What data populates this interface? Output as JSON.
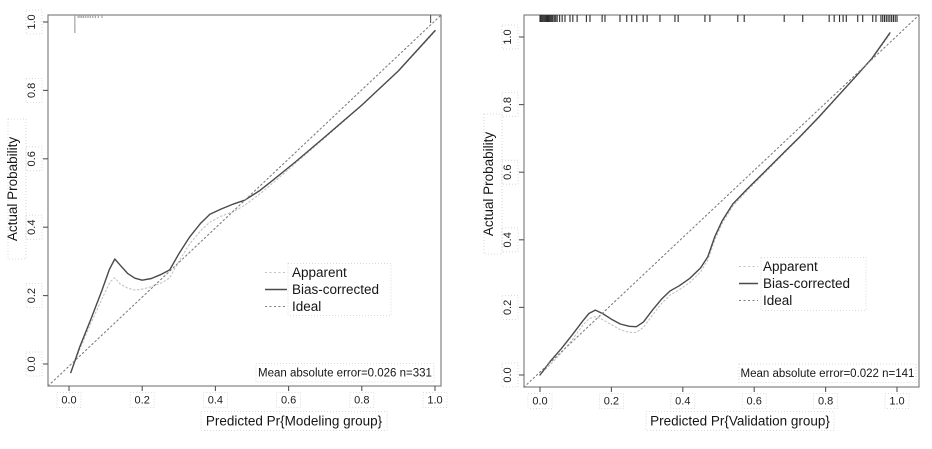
{
  "figure": {
    "description": "Two side-by-side calibration plots (modeling and validation groups)",
    "background": "#ffffff"
  },
  "colors": {
    "box_stroke": "#777777",
    "tick_stroke": "#555555",
    "tick_label": "#2a2a2a",
    "text": "#161616",
    "label_box": "#cfcfcf",
    "rug_default": "#2b2b2b"
  },
  "chart_data": [
    {
      "type": "line",
      "title": "",
      "xlabel": "Predicted Pr{Modeling group}",
      "ylabel": "Actual Probability",
      "xlim": [
        -0.057,
        1.016
      ],
      "ylim": [
        -0.064,
        1.02
      ],
      "xtick_labels": [
        "0.0",
        "0.2",
        "0.4",
        "0.6",
        "0.8",
        "1.0"
      ],
      "ytick_labels": [
        "0.0",
        "0.2",
        "0.4",
        "0.6",
        "0.8",
        "1.0"
      ],
      "grid": false,
      "legend_position": "right-center",
      "annotation": "Mean absolute error=0.026 n=331",
      "series": [
        {
          "name": "Apparent",
          "style": "dotted",
          "color": "#c2c2c2",
          "points": [
            [
              0.005,
              -0.025
            ],
            [
              0.03,
              0.045
            ],
            [
              0.06,
              0.12
            ],
            [
              0.09,
              0.19
            ],
            [
              0.112,
              0.24
            ],
            [
              0.125,
              0.252
            ],
            [
              0.14,
              0.234
            ],
            [
              0.16,
              0.222
            ],
            [
              0.18,
              0.216
            ],
            [
              0.205,
              0.22
            ],
            [
              0.23,
              0.228
            ],
            [
              0.255,
              0.238
            ],
            [
              0.275,
              0.252
            ],
            [
              0.3,
              0.3
            ],
            [
              0.33,
              0.352
            ],
            [
              0.36,
              0.39
            ],
            [
              0.385,
              0.415
            ],
            [
              0.415,
              0.432
            ],
            [
              0.45,
              0.446
            ],
            [
              0.48,
              0.464
            ],
            [
              0.52,
              0.496
            ],
            [
              0.56,
              0.532
            ],
            [
              0.62,
              0.588
            ],
            [
              0.7,
              0.662
            ],
            [
              0.8,
              0.756
            ],
            [
              0.9,
              0.856
            ],
            [
              1.0,
              0.972
            ]
          ]
        },
        {
          "name": "Bias-corrected",
          "style": "solid",
          "color": "#4a4a4a",
          "points": [
            [
              0.005,
              -0.025
            ],
            [
              0.03,
              0.052
            ],
            [
              0.06,
              0.132
            ],
            [
              0.09,
              0.215
            ],
            [
              0.11,
              0.276
            ],
            [
              0.125,
              0.307
            ],
            [
              0.14,
              0.289
            ],
            [
              0.16,
              0.265
            ],
            [
              0.18,
              0.251
            ],
            [
              0.2,
              0.245
            ],
            [
              0.225,
              0.25
            ],
            [
              0.25,
              0.261
            ],
            [
              0.275,
              0.275
            ],
            [
              0.3,
              0.322
            ],
            [
              0.33,
              0.372
            ],
            [
              0.36,
              0.412
            ],
            [
              0.385,
              0.438
            ],
            [
              0.415,
              0.453
            ],
            [
              0.45,
              0.468
            ],
            [
              0.48,
              0.479
            ],
            [
              0.52,
              0.506
            ],
            [
              0.56,
              0.54
            ],
            [
              0.62,
              0.592
            ],
            [
              0.7,
              0.665
            ],
            [
              0.8,
              0.757
            ],
            [
              0.9,
              0.857
            ],
            [
              1.0,
              0.975
            ]
          ]
        },
        {
          "name": "Ideal",
          "style": "dashed",
          "color": "#7d7d7d",
          "points": [
            [
              -0.057,
              -0.064
            ],
            [
              1.016,
              1.02
            ]
          ]
        }
      ],
      "rug_ticks": [
        [
          0.016,
          18,
          "#9a9a9a"
        ],
        [
          0.025,
          3,
          "#9a9a9a"
        ],
        [
          0.03,
          3,
          "#9a9a9a"
        ],
        [
          0.035,
          3,
          "#9a9a9a"
        ],
        [
          0.04,
          3,
          "#9a9a9a"
        ],
        [
          0.046,
          3,
          "#9a9a9a"
        ],
        [
          0.052,
          3,
          "#9a9a9a"
        ],
        [
          0.058,
          3,
          "#9a9a9a"
        ],
        [
          0.065,
          3,
          "#9a9a9a"
        ],
        [
          0.072,
          3,
          "#9a9a9a"
        ],
        [
          0.08,
          3,
          "#9a9a9a"
        ],
        [
          0.09,
          3,
          "#9a9a9a"
        ],
        [
          0.988,
          8,
          "#555555"
        ]
      ]
    },
    {
      "type": "line",
      "title": "",
      "xlabel": "Predicted Pr{Validation group}",
      "ylabel": "Actual Probability",
      "xlim": [
        -0.045,
        1.062
      ],
      "ylim": [
        -0.036,
        1.065
      ],
      "xtick_labels": [
        "0.0",
        "0.2",
        "0.4",
        "0.6",
        "0.8",
        "1.0"
      ],
      "ytick_labels": [
        "0.0",
        "0.2",
        "0.4",
        "0.6",
        "0.8",
        "1.0"
      ],
      "grid": false,
      "legend_position": "right-center",
      "annotation": "Mean absolute error=0.022 n=141",
      "series": [
        {
          "name": "Apparent",
          "style": "dotted",
          "color": "#c2c2c2",
          "points": [
            [
              0.0,
              0.0
            ],
            [
              0.03,
              0.032
            ],
            [
              0.06,
              0.066
            ],
            [
              0.09,
              0.104
            ],
            [
              0.12,
              0.147
            ],
            [
              0.137,
              0.166
            ],
            [
              0.155,
              0.173
            ],
            [
              0.175,
              0.164
            ],
            [
              0.2,
              0.149
            ],
            [
              0.225,
              0.134
            ],
            [
              0.25,
              0.126
            ],
            [
              0.27,
              0.126
            ],
            [
              0.29,
              0.141
            ],
            [
              0.315,
              0.177
            ],
            [
              0.34,
              0.211
            ],
            [
              0.365,
              0.237
            ],
            [
              0.39,
              0.252
            ],
            [
              0.42,
              0.274
            ],
            [
              0.45,
              0.305
            ],
            [
              0.47,
              0.34
            ],
            [
              0.49,
              0.4
            ],
            [
              0.51,
              0.448
            ],
            [
              0.54,
              0.5
            ],
            [
              0.58,
              0.545
            ],
            [
              0.63,
              0.598
            ],
            [
              0.68,
              0.652
            ],
            [
              0.73,
              0.705
            ],
            [
              0.78,
              0.76
            ],
            [
              0.83,
              0.818
            ],
            [
              0.88,
              0.877
            ],
            [
              0.93,
              0.936
            ],
            [
              0.98,
              1.008
            ]
          ]
        },
        {
          "name": "Bias-corrected",
          "style": "solid",
          "color": "#4a4a4a",
          "points": [
            [
              0.0,
              0.0
            ],
            [
              0.03,
              0.042
            ],
            [
              0.06,
              0.078
            ],
            [
              0.09,
              0.118
            ],
            [
              0.12,
              0.16
            ],
            [
              0.137,
              0.182
            ],
            [
              0.155,
              0.192
            ],
            [
              0.175,
              0.182
            ],
            [
              0.2,
              0.165
            ],
            [
              0.225,
              0.151
            ],
            [
              0.25,
              0.144
            ],
            [
              0.27,
              0.143
            ],
            [
              0.29,
              0.157
            ],
            [
              0.315,
              0.192
            ],
            [
              0.34,
              0.224
            ],
            [
              0.365,
              0.249
            ],
            [
              0.39,
              0.264
            ],
            [
              0.42,
              0.286
            ],
            [
              0.45,
              0.317
            ],
            [
              0.47,
              0.35
            ],
            [
              0.49,
              0.41
            ],
            [
              0.51,
              0.456
            ],
            [
              0.54,
              0.506
            ],
            [
              0.58,
              0.55
            ],
            [
              0.63,
              0.602
            ],
            [
              0.68,
              0.655
            ],
            [
              0.73,
              0.707
            ],
            [
              0.78,
              0.762
            ],
            [
              0.83,
              0.82
            ],
            [
              0.88,
              0.878
            ],
            [
              0.93,
              0.937
            ],
            [
              0.98,
              1.012
            ]
          ]
        },
        {
          "name": "Ideal",
          "style": "dashed",
          "color": "#7d7d7d",
          "points": [
            [
              -0.045,
              -0.036
            ],
            [
              1.062,
              1.065
            ]
          ]
        }
      ],
      "rug_ticks": [
        [
          0.0,
          7
        ],
        [
          0.003,
          7
        ],
        [
          0.006,
          7
        ],
        [
          0.009,
          7
        ],
        [
          0.012,
          7
        ],
        [
          0.015,
          7
        ],
        [
          0.018,
          7
        ],
        [
          0.021,
          7
        ],
        [
          0.024,
          7
        ],
        [
          0.027,
          7
        ],
        [
          0.03,
          7
        ],
        [
          0.033,
          7
        ],
        [
          0.036,
          7
        ],
        [
          0.04,
          7
        ],
        [
          0.044,
          7
        ],
        [
          0.048,
          7
        ],
        [
          0.055,
          7
        ],
        [
          0.062,
          7
        ],
        [
          0.07,
          7
        ],
        [
          0.084,
          7
        ],
        [
          0.092,
          7
        ],
        [
          0.104,
          7
        ],
        [
          0.13,
          7
        ],
        [
          0.14,
          7
        ],
        [
          0.174,
          7
        ],
        [
          0.182,
          7
        ],
        [
          0.224,
          7
        ],
        [
          0.243,
          7
        ],
        [
          0.257,
          7
        ],
        [
          0.271,
          7
        ],
        [
          0.289,
          7
        ],
        [
          0.3,
          7
        ],
        [
          0.336,
          7
        ],
        [
          0.378,
          7
        ],
        [
          0.387,
          7
        ],
        [
          0.462,
          7
        ],
        [
          0.476,
          7
        ],
        [
          0.554,
          7
        ],
        [
          0.572,
          7
        ],
        [
          0.684,
          7
        ],
        [
          0.736,
          7
        ],
        [
          0.81,
          7
        ],
        [
          0.824,
          7
        ],
        [
          0.839,
          7
        ],
        [
          0.849,
          7
        ],
        [
          0.858,
          7
        ],
        [
          0.89,
          7
        ],
        [
          0.904,
          7
        ],
        [
          0.932,
          7
        ],
        [
          0.941,
          7
        ],
        [
          0.955,
          7
        ],
        [
          0.96,
          7
        ],
        [
          0.965,
          7
        ],
        [
          0.97,
          7
        ],
        [
          0.975,
          7
        ],
        [
          0.98,
          7
        ],
        [
          0.985,
          7
        ],
        [
          0.99,
          7
        ],
        [
          0.995,
          7
        ],
        [
          1.0,
          7
        ]
      ]
    }
  ]
}
